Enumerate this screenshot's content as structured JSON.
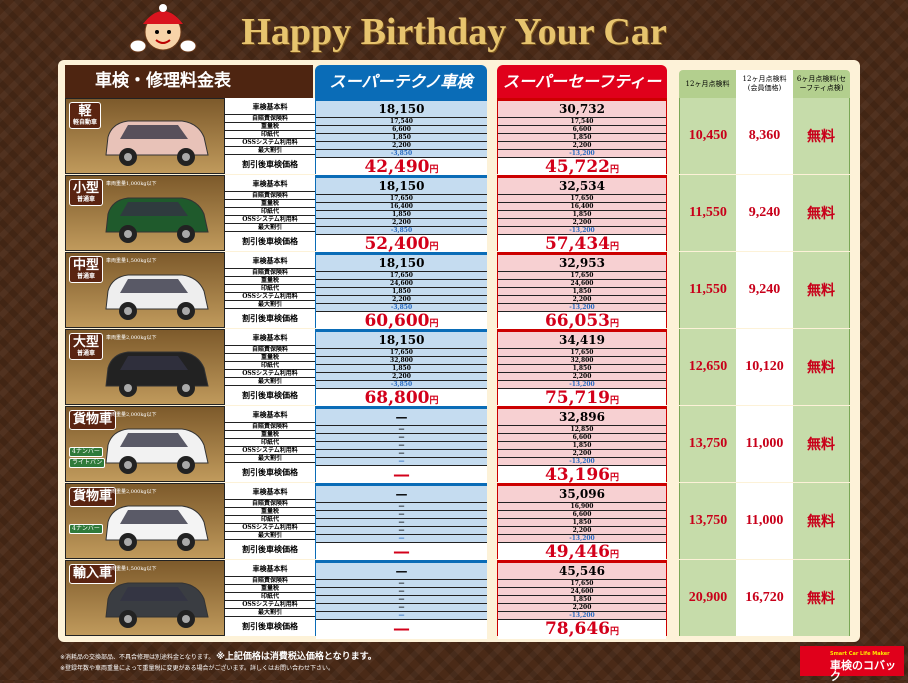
{
  "title": "Happy Birthday Your Car",
  "header": {
    "table_title": "車検・修理料金表",
    "plan_blue": "スーパーテクノ車検",
    "plan_red": "スーパーセーフティー車検",
    "col_12m": "12ヶ月点検料",
    "col_12m_member": "12ヶ月点検料(会員価格)",
    "col_6m": "6ヶ月点検料(セーフティ点検)"
  },
  "row_labels": [
    "車検基本料",
    "自賠責保険料",
    "重量税",
    "印紙代",
    "OSSシステム利用料",
    "最大割引",
    "割引後車検価格"
  ],
  "yen": "円",
  "colors": {
    "blue": "#0a6cb7",
    "red": "#e0001b",
    "green": "#b3cf8e",
    "brown": "#4e2511"
  },
  "rows": [
    {
      "class": "軽",
      "type": "軽自動車",
      "weight": "",
      "badges": [],
      "car": "pink-kei-car",
      "blue": [
        "18,150",
        "17,540",
        "6,600",
        "1,850",
        "2,200",
        "-3,850"
      ],
      "blue_total": "42,490",
      "red": [
        "30,732",
        "17,540",
        "6,600",
        "1,850",
        "2,200",
        "-13,200"
      ],
      "red_total": "45,722",
      "inspect_12m": "10,450",
      "inspect_12m_member": "8,360",
      "inspect_6m": "無料"
    },
    {
      "class": "小型",
      "type": "普通車",
      "weight": "車両重量1,000kg以下",
      "badges": [],
      "car": "green-compact-car",
      "blue": [
        "18,150",
        "17,650",
        "16,400",
        "1,850",
        "2,200",
        "-3,850"
      ],
      "blue_total": "52,400",
      "red": [
        "32,534",
        "17,650",
        "16,400",
        "1,850",
        "2,200",
        "-13,200"
      ],
      "red_total": "57,434",
      "inspect_12m": "11,550",
      "inspect_12m_member": "9,240",
      "inspect_6m": "無料"
    },
    {
      "class": "中型",
      "type": "普通車",
      "weight": "車両重量1,500kg以下",
      "badges": [],
      "car": "white-wagon",
      "blue": [
        "18,150",
        "17,650",
        "24,600",
        "1,850",
        "2,200",
        "-3,850"
      ],
      "blue_total": "60,600",
      "red": [
        "32,953",
        "17,650",
        "24,600",
        "1,850",
        "2,200",
        "-13,200"
      ],
      "red_total": "66,053",
      "inspect_12m": "11,550",
      "inspect_12m_member": "9,240",
      "inspect_6m": "無料"
    },
    {
      "class": "大型",
      "type": "普通車",
      "weight": "車両重量2,000kg以下",
      "badges": [],
      "car": "black-minivan",
      "blue": [
        "18,150",
        "17,650",
        "32,800",
        "1,850",
        "2,200",
        "-3,850"
      ],
      "blue_total": "68,800",
      "red": [
        "34,419",
        "17,650",
        "32,800",
        "1,850",
        "2,200",
        "-13,200"
      ],
      "red_total": "75,719",
      "inspect_12m": "12,650",
      "inspect_12m_member": "10,120",
      "inspect_6m": "無料"
    },
    {
      "class": "貨物車",
      "type": "",
      "weight": "車両重量2,000kg以下",
      "badges": [
        "4ナンバー",
        "ライトバン"
      ],
      "car": "white-van",
      "blue": [
        "—",
        "—",
        "—",
        "—",
        "—",
        "—"
      ],
      "blue_total": "—",
      "red": [
        "32,896",
        "12,850",
        "6,600",
        "1,850",
        "2,200",
        "-13,200"
      ],
      "red_total": "43,196",
      "inspect_12m": "13,750",
      "inspect_12m_member": "11,000",
      "inspect_6m": "無料"
    },
    {
      "class": "貨物車",
      "type": "",
      "weight": "車両重量2,000kg以下",
      "badges": [
        "4ナンバー"
      ],
      "car": "white-dump-truck",
      "blue": [
        "—",
        "—",
        "—",
        "—",
        "—",
        "—"
      ],
      "blue_total": "—",
      "red": [
        "35,096",
        "16,900",
        "6,600",
        "1,850",
        "2,200",
        "-13,200"
      ],
      "red_total": "49,446",
      "inspect_12m": "13,750",
      "inspect_12m_member": "11,000",
      "inspect_6m": "無料"
    },
    {
      "class": "輸入車",
      "type": "",
      "weight": "車両重量1,500kg以下",
      "badges": [],
      "car": "dark-hatchback",
      "blue": [
        "—",
        "—",
        "—",
        "—",
        "—",
        "—"
      ],
      "blue_total": "—",
      "red": [
        "45,546",
        "17,650",
        "24,600",
        "1,850",
        "2,200",
        "-13,200"
      ],
      "red_total": "78,646",
      "inspect_12m": "20,900",
      "inspect_12m_member": "16,720",
      "inspect_6m": "無料"
    }
  ],
  "footer": {
    "note1": "※消耗品の交換部品、不具合修理は別途料金となります。",
    "note1_bold": "※上記価格は消費税込価格となります。",
    "note2": "※登録年数や車両重量によって重量税に変更がある場合がございます。詳しくはお問い合わせ下さい。"
  },
  "logo": {
    "tagline": "Smart Car Life Maker",
    "name": "車検のコバック"
  }
}
